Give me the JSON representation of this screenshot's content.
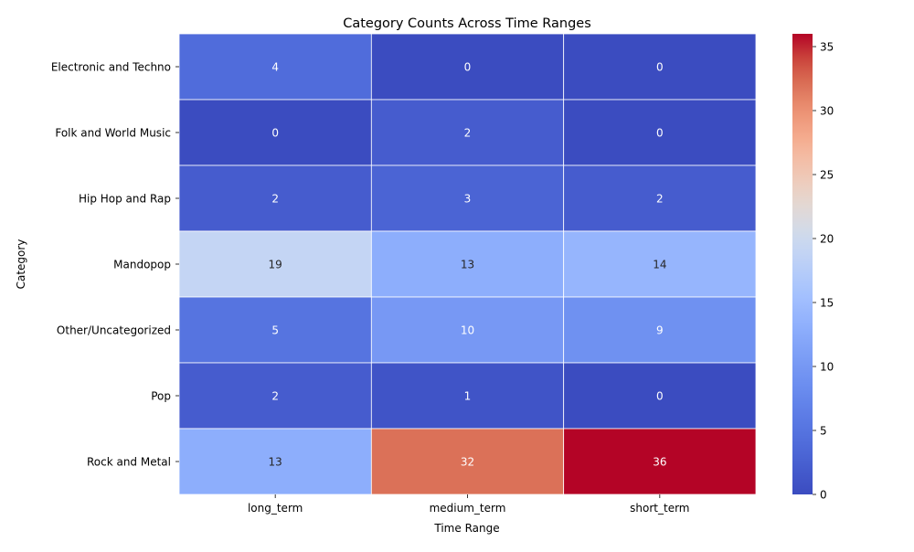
{
  "chart_data": {
    "type": "heatmap",
    "title": "Category Counts Across Time Ranges",
    "xlabel": "Time Range",
    "ylabel": "Category",
    "x_categories": [
      "long_term",
      "medium_term",
      "short_term"
    ],
    "y_categories": [
      "Electronic and Techno",
      "Folk and World Music",
      "Hip Hop and Rap",
      "Mandopop",
      "Other/Uncategorized",
      "Pop",
      "Rock and Metal"
    ],
    "values": [
      [
        4,
        0,
        0
      ],
      [
        0,
        2,
        0
      ],
      [
        2,
        3,
        2
      ],
      [
        19,
        13,
        14
      ],
      [
        5,
        10,
        9
      ],
      [
        2,
        1,
        0
      ],
      [
        13,
        32,
        36
      ]
    ],
    "colormap": "coolwarm",
    "vmin": 0,
    "vmax": 36,
    "colorbar_ticks": [
      0,
      5,
      10,
      15,
      20,
      25,
      30,
      35
    ],
    "annotate": true,
    "legend": "colorbar-right"
  }
}
